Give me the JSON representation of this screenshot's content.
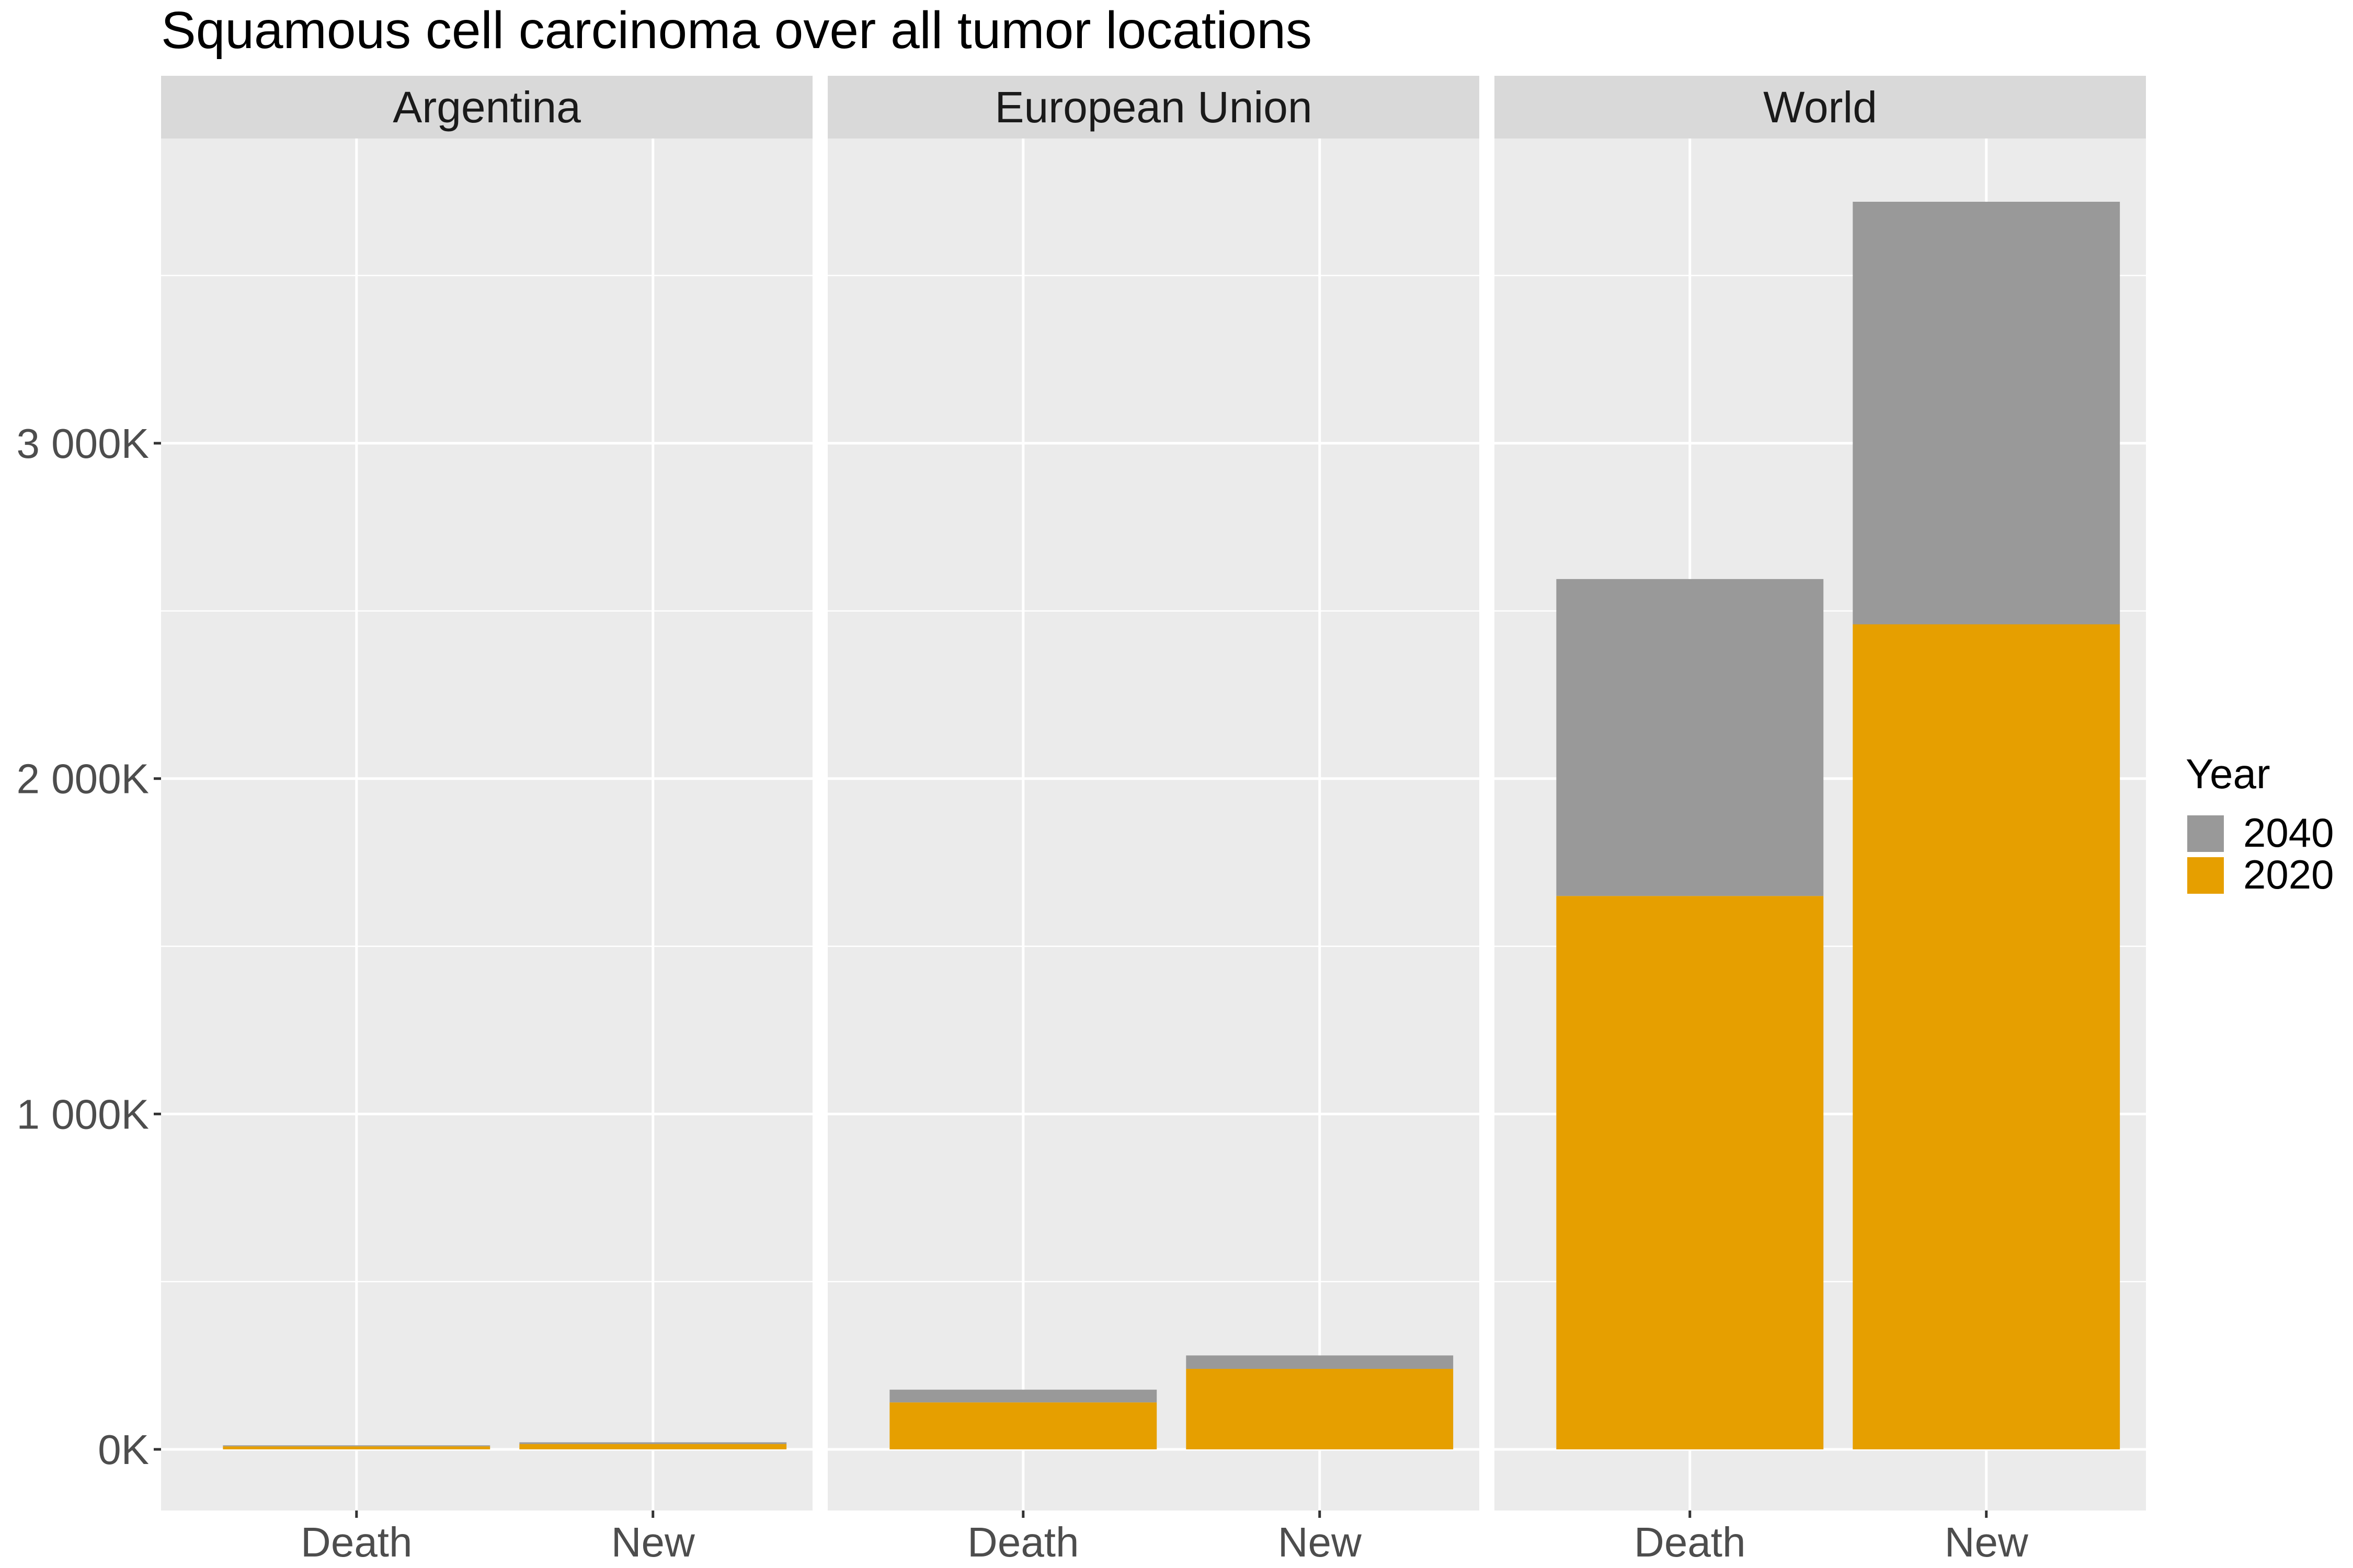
{
  "chart_data": {
    "type": "bar",
    "stacked": true,
    "title": "Squamous cell carcinoma over all tumor locations",
    "xlabel": "",
    "ylabel": "",
    "ylim": [
      -180000,
      3850000
    ],
    "yticks": [
      0,
      1000000,
      2000000,
      3000000
    ],
    "ytick_labels": [
      "0K",
      "1 000K",
      "2 000K",
      "3 000K"
    ],
    "grid": true,
    "legend": {
      "title": "Year",
      "placement": "right",
      "entries": [
        {
          "label": "2040",
          "color": "#999999"
        },
        {
          "label": "2020",
          "color": "#E69F00"
        }
      ]
    },
    "categories": [
      "Death",
      "New"
    ],
    "panels": [
      {
        "name": "Argentina",
        "series": [
          {
            "name": "2020",
            "values": [
              9000,
              16000
            ]
          },
          {
            "name": "2040",
            "values": [
              3000,
              5000
            ]
          }
        ]
      },
      {
        "name": "European Union",
        "series": [
          {
            "name": "2020",
            "values": [
              140000,
              240000
            ]
          },
          {
            "name": "2040",
            "values": [
              38000,
              40000
            ]
          }
        ]
      },
      {
        "name": "World",
        "series": [
          {
            "name": "2020",
            "values": [
              1650000,
              2460000
            ]
          },
          {
            "name": "2040",
            "values": [
              945000,
              1260000
            ]
          }
        ]
      }
    ]
  },
  "colors": {
    "panel_bg": "#EBEBEB",
    "strip_bg": "#D9D9D9",
    "grid": "#FFFFFF"
  }
}
